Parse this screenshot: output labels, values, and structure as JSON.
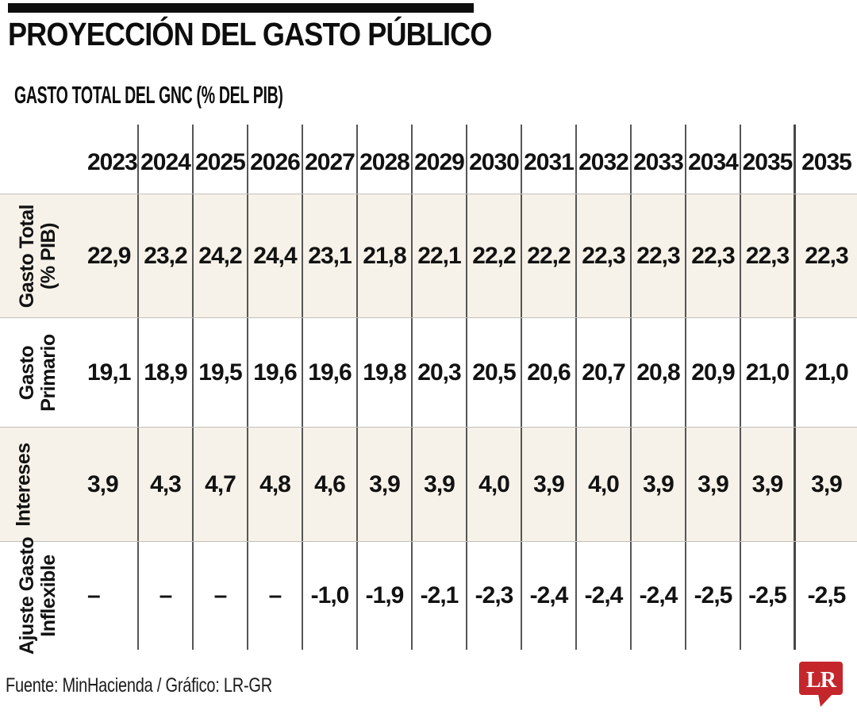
{
  "title_block": {
    "title": "PROYECCIÓN DEL GASTO PÚBLICO",
    "subtitle": "GASTO TOTAL DEL GNC (% DEL PIB)"
  },
  "table": {
    "years": [
      "2023",
      "2024",
      "2025",
      "2026",
      "2027",
      "2028",
      "2029",
      "2030",
      "2031",
      "2032",
      "2033",
      "2034",
      "2035",
      "2035"
    ],
    "rows": [
      {
        "label_lines": [
          "Gasto Total",
          "(% PIB)"
        ],
        "striped": true,
        "values": [
          "22,9",
          "23,2",
          "24,2",
          "24,4",
          "23,1",
          "21,8",
          "22,1",
          "22,2",
          "22,2",
          "22,3",
          "22,3",
          "22,3",
          "22,3",
          "22,3"
        ]
      },
      {
        "label_lines": [
          "Gasto",
          "Primario"
        ],
        "striped": false,
        "values": [
          "19,1",
          "18,9",
          "19,5",
          "19,6",
          "19,6",
          "19,8",
          "20,3",
          "20,5",
          "20,6",
          "20,7",
          "20,8",
          "20,9",
          "21,0",
          "21,0"
        ]
      },
      {
        "label_lines": [
          "Intereses"
        ],
        "striped": true,
        "values": [
          "3,9",
          "4,3",
          "4,7",
          "4,8",
          "4,6",
          "3,9",
          "3,9",
          "4,0",
          "3,9",
          "4,0",
          "3,9",
          "3,9",
          "3,9",
          "3,9"
        ]
      },
      {
        "label_lines": [
          "Ajuste Gasto",
          "Inflexible"
        ],
        "striped": false,
        "values": [
          "–",
          "–",
          "–",
          "–",
          "-1,0",
          "-1,9",
          "-2,1",
          "-2,3",
          "-2,4",
          "-2,4",
          "-2,4",
          "-2,5",
          "-2,5",
          "-2,5"
        ]
      }
    ]
  },
  "footer": {
    "source": "Fuente: MinHacienda / Gráfico: LR-GR",
    "logo_text": "LR"
  },
  "colors": {
    "logo_red": "#c5262c",
    "row_stripe": "#f6f2e9",
    "grid_line": "#565656",
    "row_separator": "#c2bfb9",
    "ink": "#121212"
  },
  "chart_data": {
    "type": "table",
    "title": "PROYECCIÓN DEL GASTO PÚBLICO",
    "subtitle": "GASTO TOTAL DEL GNC (% DEL PIB)",
    "categories": [
      "2023",
      "2024",
      "2025",
      "2026",
      "2027",
      "2028",
      "2029",
      "2030",
      "2031",
      "2032",
      "2033",
      "2034",
      "2035",
      "2035"
    ],
    "series": [
      {
        "name": "Gasto Total (% PIB)",
        "values": [
          22.9,
          23.2,
          24.2,
          24.4,
          23.1,
          21.8,
          22.1,
          22.2,
          22.2,
          22.3,
          22.3,
          22.3,
          22.3,
          22.3
        ]
      },
      {
        "name": "Gasto Primario",
        "values": [
          19.1,
          18.9,
          19.5,
          19.6,
          19.6,
          19.8,
          20.3,
          20.5,
          20.6,
          20.7,
          20.8,
          20.9,
          21.0,
          21.0
        ]
      },
      {
        "name": "Intereses",
        "values": [
          3.9,
          4.3,
          4.7,
          4.8,
          4.6,
          3.9,
          3.9,
          4.0,
          3.9,
          4.0,
          3.9,
          3.9,
          3.9,
          3.9
        ]
      },
      {
        "name": "Ajuste Gasto Inflexible",
        "values": [
          null,
          null,
          null,
          null,
          -1.0,
          -1.9,
          -2.1,
          -2.3,
          -2.4,
          -2.4,
          -2.4,
          -2.5,
          -2.5,
          -2.5
        ]
      }
    ],
    "source": "Fuente: MinHacienda / Gráfico: LR-GR"
  }
}
